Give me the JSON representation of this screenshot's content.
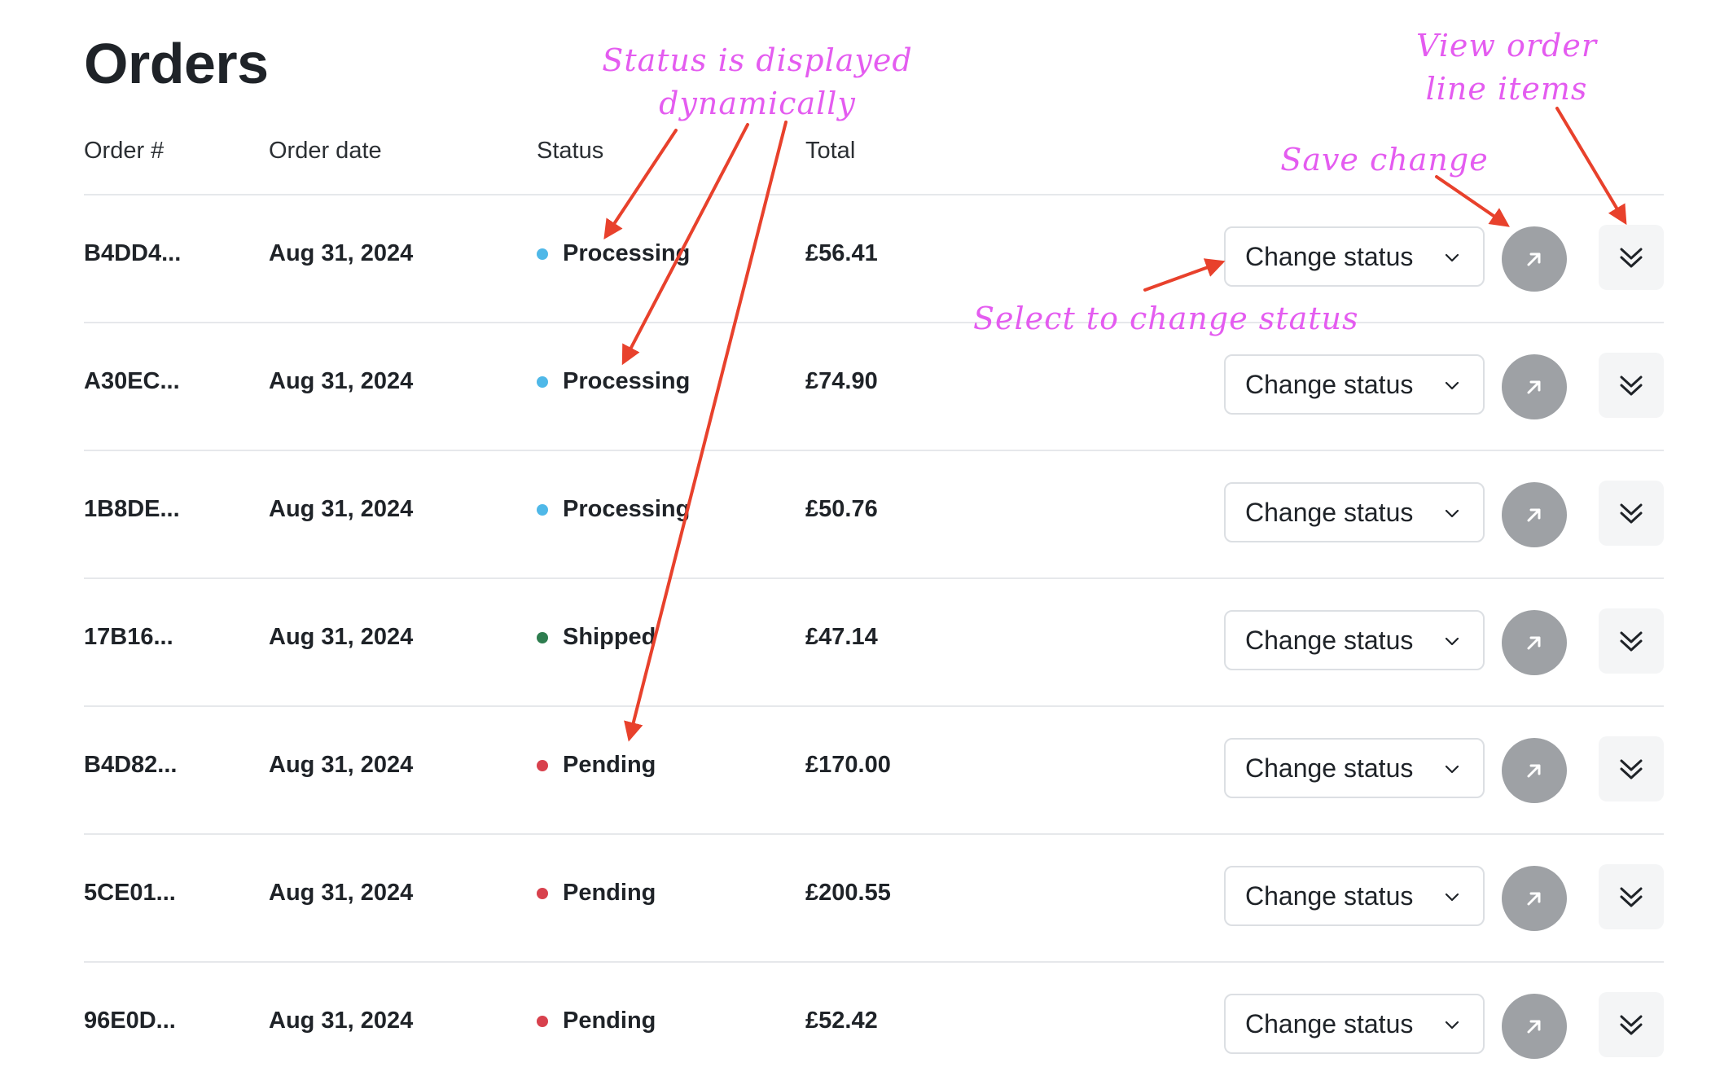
{
  "page": {
    "title": "Orders"
  },
  "table": {
    "columns": {
      "order": "Order #",
      "date": "Order date",
      "status": "Status",
      "total": "Total"
    },
    "rows": [
      {
        "order_id": "B4DD4...",
        "date": "Aug 31, 2024",
        "status": "Processing",
        "total": "£56.41"
      },
      {
        "order_id": "A30EC...",
        "date": "Aug 31, 2024",
        "status": "Processing",
        "total": "£74.90"
      },
      {
        "order_id": "1B8DE...",
        "date": "Aug 31, 2024",
        "status": "Processing",
        "total": "£50.76"
      },
      {
        "order_id": "17B16...",
        "date": "Aug 31, 2024",
        "status": "Shipped",
        "total": "£47.14"
      },
      {
        "order_id": "B4D82...",
        "date": "Aug 31, 2024",
        "status": "Pending",
        "total": "£170.00"
      },
      {
        "order_id": "5CE01...",
        "date": "Aug 31, 2024",
        "status": "Pending",
        "total": "£200.55"
      },
      {
        "order_id": "96E0D...",
        "date": "Aug 31, 2024",
        "status": "Pending",
        "total": "£52.42"
      }
    ],
    "change_status_label": "Change status",
    "status_colors": {
      "Processing": "#4fb8e8",
      "Shipped": "#2e7d4f",
      "Pending": "#d8414d"
    }
  },
  "icons": {
    "dropdown": "chevron-down-icon",
    "save": "arrow-up-right-icon",
    "expand": "double-chevron-down-icon"
  },
  "annotations": {
    "status_note_line1": "Status is displayed",
    "status_note_line2": "dynamically",
    "view_items_line1": "View order",
    "view_items_line2": "line items",
    "save_change": "Save change",
    "select_change": "Select to change status",
    "annotation_color": "#e45cf0",
    "arrow_color": "#e8412c"
  }
}
